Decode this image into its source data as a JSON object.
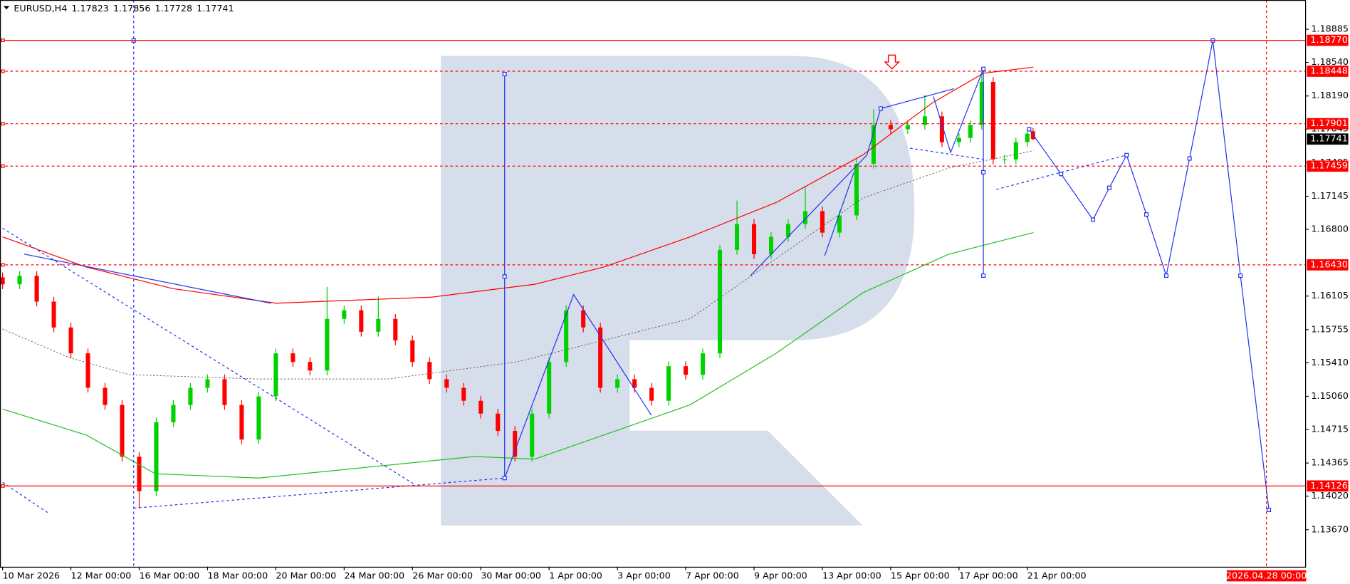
{
  "chart_data": {
    "type": "candlestick",
    "title": "EURUSD,H4",
    "header_values": [
      1.17823,
      1.17856,
      1.17728,
      1.17741
    ],
    "xlim": [
      -0.45,
      228.8
    ],
    "xticks": [
      {
        "value": 0,
        "label": "10 Mar 2026"
      },
      {
        "value": 12,
        "label": "12 Mar 00:00"
      },
      {
        "value": 24,
        "label": "16 Mar 00:00"
      },
      {
        "value": 36,
        "label": "18 Mar 00:00"
      },
      {
        "value": 48,
        "label": "20 Mar 00:00"
      },
      {
        "value": 60,
        "label": "24 Mar 00:00"
      },
      {
        "value": 72,
        "label": "26 Mar 00:00"
      },
      {
        "value": 84,
        "label": "30 Mar 00:00"
      },
      {
        "value": 96,
        "label": "1 Apr 00:00"
      },
      {
        "value": 108,
        "label": "3 Apr 00:00"
      },
      {
        "value": 120,
        "label": "7 Apr 00:00"
      },
      {
        "value": 132,
        "label": "9 Apr 00:00"
      },
      {
        "value": 144,
        "label": "13 Apr 00:00"
      },
      {
        "value": 156,
        "label": "15 Apr 00:00"
      },
      {
        "value": 168,
        "label": "17 Apr 00:00"
      },
      {
        "value": 180,
        "label": "21 Apr 00:00"
      }
    ],
    "time_marker": {
      "value": 222,
      "label": "2026.04.28 00:00"
    },
    "ylim": [
      1.13284,
      1.1919
    ],
    "yticks": [
      1.18885,
      {
        "value": 1.1854,
        "label": "1.18540"
      },
      {
        "value": 1.1819,
        "label": "1.18190"
      },
      1.17845,
      1.17495,
      1.17145,
      {
        "value": 1.168,
        "label": "1.16800"
      },
      1.16105,
      1.15755,
      {
        "value": 1.1541,
        "label": "1.15410"
      },
      {
        "value": 1.1506,
        "label": "1.15060"
      },
      1.14715,
      1.14365,
      {
        "value": 1.1402,
        "label": "1.14020"
      },
      {
        "value": 1.1367,
        "label": "1.13670"
      }
    ],
    "candles": {
      "up_color": "#00d200",
      "down_color": "#ff0000",
      "x": [
        0,
        3,
        6,
        9,
        12,
        15,
        18,
        21,
        24,
        27,
        30,
        33,
        36,
        39,
        42,
        45,
        48,
        51,
        54,
        57,
        60,
        63,
        66,
        69,
        72,
        75,
        78,
        81,
        84,
        87,
        90,
        93,
        96,
        99,
        102,
        105,
        108,
        111,
        114,
        117,
        120,
        123,
        126,
        129,
        132,
        135,
        138,
        141,
        144,
        147,
        150,
        153,
        156,
        159,
        162,
        165,
        168,
        170,
        172,
        174,
        176,
        178,
        180,
        181
      ],
      "open": [
        1.163,
        1.16227,
        1.16316,
        1.16047,
        1.15778,
        1.15508,
        1.15149,
        1.1497,
        1.14431,
        1.14071,
        1.1479,
        1.1497,
        1.15149,
        1.15239,
        1.1497,
        1.1461,
        1.15059,
        1.15508,
        1.15418,
        1.15329,
        1.15867,
        1.15957,
        1.15733,
        1.15867,
        1.15643,
        1.15418,
        1.15239,
        1.15149,
        1.15014,
        1.1488,
        1.147,
        1.14431,
        1.1488,
        1.15418,
        1.15957,
        1.15778,
        1.15149,
        1.15239,
        1.15149,
        1.15014,
        1.15374,
        1.15284,
        1.15508,
        1.16586,
        1.16855,
        1.16541,
        1.16721,
        1.16855,
        1.1699,
        1.16766,
        1.16945,
        1.17484,
        1.17888,
        1.17843,
        1.17888,
        1.17978,
        1.17708,
        1.17753,
        1.17888,
        1.18337,
        1.17529,
        1.17529,
        1.17708,
        1.17823
      ],
      "high": [
        1.1635,
        1.16366,
        1.16366,
        1.16097,
        1.15828,
        1.15558,
        1.15199,
        1.1502,
        1.14481,
        1.1484,
        1.1502,
        1.15199,
        1.15289,
        1.15289,
        1.1502,
        1.15109,
        1.15558,
        1.15558,
        1.15468,
        1.162,
        1.16007,
        1.16007,
        1.161,
        1.15917,
        1.15693,
        1.15468,
        1.15289,
        1.15199,
        1.15064,
        1.1493,
        1.1475,
        1.1493,
        1.15468,
        1.16007,
        1.16007,
        1.15828,
        1.15289,
        1.15289,
        1.15199,
        1.15424,
        1.15424,
        1.15558,
        1.16636,
        1.171,
        1.16905,
        1.16771,
        1.16905,
        1.1725,
        1.1704,
        1.16995,
        1.17534,
        1.1805,
        1.17938,
        1.17938,
        1.182,
        1.18028,
        1.17803,
        1.17938,
        1.18448,
        1.18387,
        1.17579,
        1.17758,
        1.17848,
        1.17856
      ],
      "low": [
        1.16177,
        1.16177,
        1.15997,
        1.15728,
        1.15458,
        1.15099,
        1.1492,
        1.14381,
        1.13892,
        1.14021,
        1.1474,
        1.1492,
        1.15099,
        1.1492,
        1.1456,
        1.1456,
        1.15009,
        1.15368,
        1.15279,
        1.15279,
        1.15817,
        1.15683,
        1.15683,
        1.15593,
        1.15368,
        1.15189,
        1.15099,
        1.14964,
        1.1483,
        1.1465,
        1.14381,
        1.14381,
        1.1483,
        1.15368,
        1.15728,
        1.15099,
        1.15099,
        1.15099,
        1.14964,
        1.14964,
        1.15234,
        1.15234,
        1.15458,
        1.16536,
        1.16491,
        1.16491,
        1.16671,
        1.16805,
        1.16716,
        1.16716,
        1.16895,
        1.17434,
        1.17793,
        1.17793,
        1.17838,
        1.17658,
        1.17658,
        1.17703,
        1.17838,
        1.17479,
        1.17479,
        1.17479,
        1.17658,
        1.17728
      ],
      "close": [
        1.16227,
        1.16316,
        1.16047,
        1.15778,
        1.15508,
        1.15149,
        1.1497,
        1.14431,
        1.14071,
        1.1479,
        1.1497,
        1.15149,
        1.15239,
        1.1497,
        1.1461,
        1.15059,
        1.15508,
        1.15418,
        1.15329,
        1.15867,
        1.15957,
        1.15733,
        1.15867,
        1.15643,
        1.15418,
        1.15239,
        1.15149,
        1.15014,
        1.1488,
        1.147,
        1.14431,
        1.1488,
        1.15418,
        1.15957,
        1.15778,
        1.15149,
        1.15239,
        1.15149,
        1.15014,
        1.15374,
        1.15284,
        1.15508,
        1.16586,
        1.16855,
        1.16541,
        1.16721,
        1.16855,
        1.1699,
        1.16766,
        1.16945,
        1.17484,
        1.17888,
        1.17843,
        1.17888,
        1.17978,
        1.17708,
        1.17753,
        1.17888,
        1.18337,
        1.17529,
        1.17529,
        1.17708,
        1.17798,
        1.17741
      ]
    },
    "levels": [
      {
        "value": 1.1877,
        "label": "1.18770",
        "style": "solid"
      },
      {
        "value": 1.18448,
        "style": "dashed"
      },
      {
        "value": 1.17901,
        "style": "dashed"
      },
      {
        "value": 1.17459,
        "style": "dashed"
      },
      {
        "value": 1.1643,
        "label": "1.16430",
        "style": "dashed"
      },
      {
        "value": 1.14126,
        "style": "solid"
      }
    ],
    "level_color": "#ff0000",
    "current_price": 1.17741
  }
}
